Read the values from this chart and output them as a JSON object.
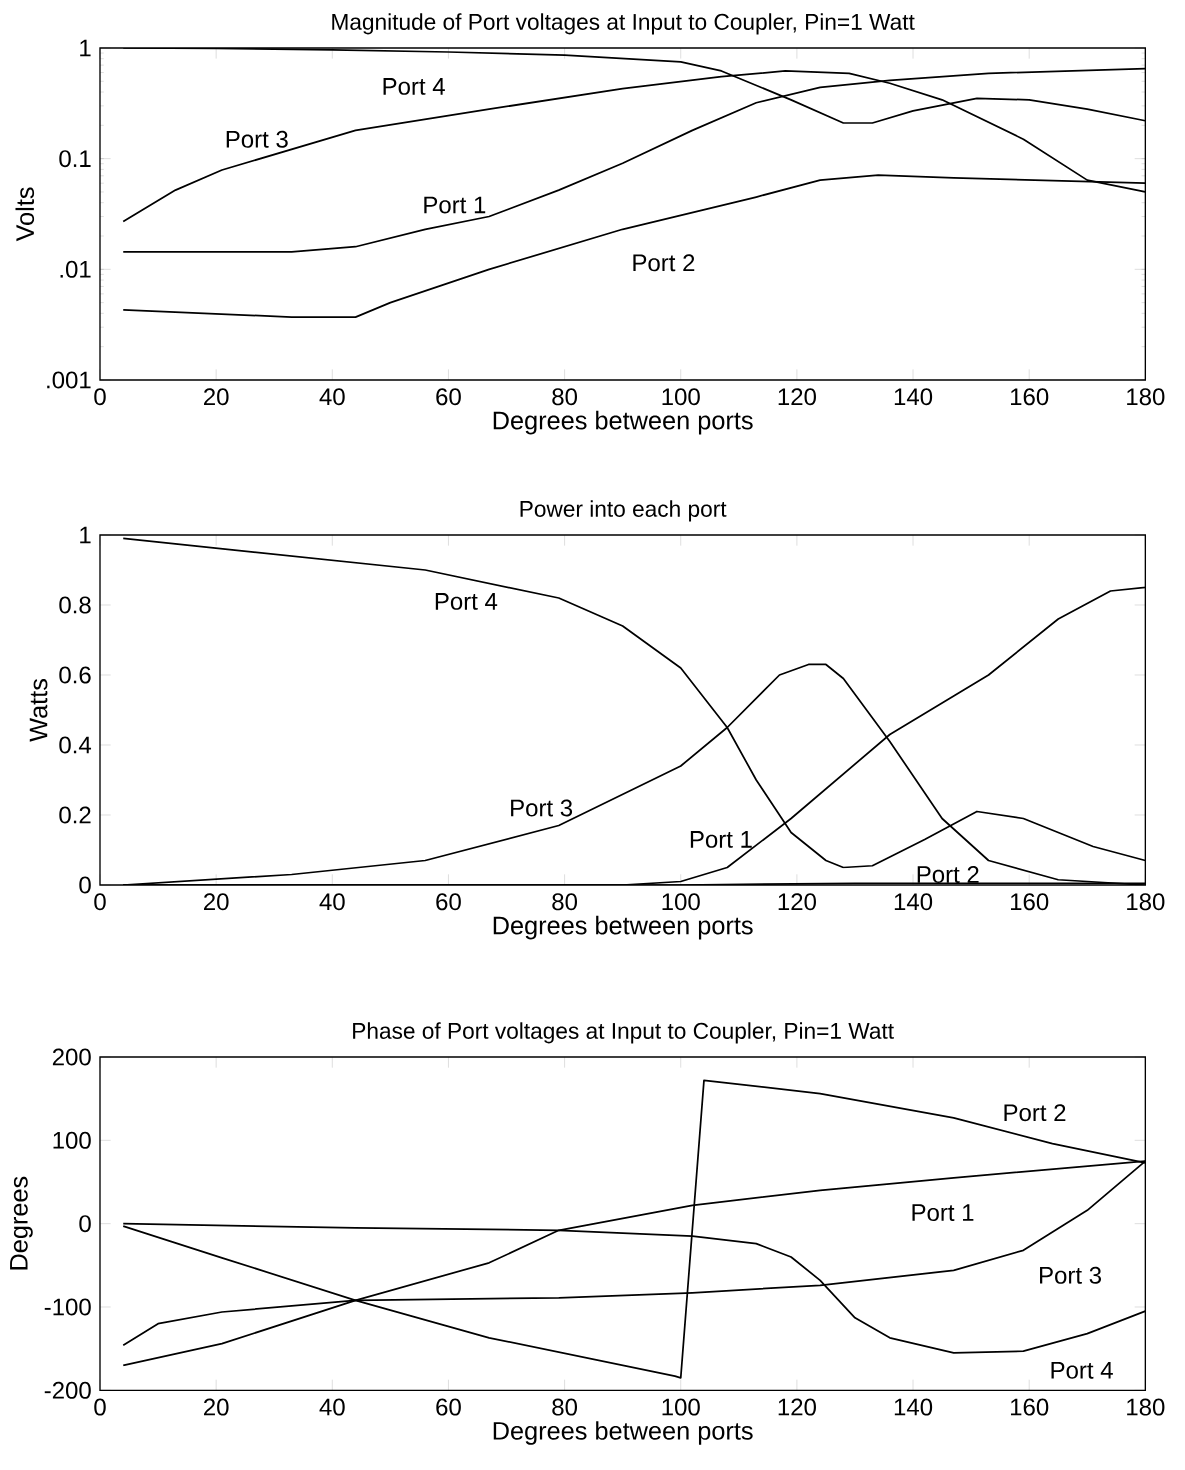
{
  "chart_data": [
    {
      "type": "line",
      "title": "Magnitude of Port voltages at Input to Coupler, Pin=1 Watt",
      "xlabel": "Degrees between ports",
      "ylabel": "Volts",
      "log": "y",
      "xlim": [
        0,
        180
      ],
      "xticks": [
        0,
        20,
        40,
        60,
        80,
        100,
        120,
        140,
        160,
        180
      ],
      "ylim": [
        0.001,
        1
      ],
      "yticks": [
        {
          "value": 0.001,
          "label": ".001"
        },
        {
          "value": 0.01,
          "label": ".01"
        },
        0.1,
        1
      ],
      "series": [
        {
          "name": "Port 4",
          "color": "#000000",
          "x": [
            4,
            20,
            40,
            60,
            80,
            100,
            107,
            119,
            128,
            133,
            140,
            151,
            160,
            170,
            180
          ],
          "values": [
            1.0,
            0.99,
            0.96,
            0.92,
            0.86,
            0.75,
            0.62,
            0.34,
            0.21,
            0.21,
            0.27,
            0.35,
            0.34,
            0.28,
            0.22
          ]
        },
        {
          "name": "Port 3",
          "color": "#000000",
          "x": [
            4,
            13,
            21,
            44,
            67,
            90,
            107,
            118,
            129,
            136,
            145,
            159,
            170,
            180
          ],
          "values": [
            0.027,
            0.052,
            0.079,
            0.18,
            0.28,
            0.43,
            0.55,
            0.62,
            0.59,
            0.48,
            0.34,
            0.15,
            0.064,
            0.05
          ]
        },
        {
          "name": "Port 1",
          "color": "#000000",
          "x": [
            4,
            33,
            44,
            56,
            67,
            79,
            90,
            102,
            113,
            124,
            136,
            153,
            180
          ],
          "values": [
            0.0144,
            0.0144,
            0.016,
            0.023,
            0.03,
            0.052,
            0.091,
            0.18,
            0.32,
            0.44,
            0.51,
            0.59,
            0.65
          ]
        },
        {
          "name": "Port 2",
          "color": "#000000",
          "x": [
            4,
            33,
            44,
            50,
            67,
            90,
            113,
            124,
            134,
            147,
            180
          ],
          "values": [
            0.0043,
            0.0037,
            0.0037,
            0.005,
            0.01,
            0.023,
            0.045,
            0.064,
            0.071,
            0.067,
            0.06
          ]
        }
      ]
    },
    {
      "type": "line",
      "title": "Power into each port",
      "xlabel": "Degrees between ports",
      "ylabel": "Watts",
      "xlim": [
        0,
        180
      ],
      "xticks": [
        0,
        20,
        40,
        60,
        80,
        100,
        120,
        140,
        160,
        180
      ],
      "ylim": [
        0,
        1
      ],
      "yticks": [
        0,
        0.2,
        0.4,
        0.6,
        0.8,
        1
      ],
      "series": [
        {
          "name": "Port 4",
          "color": "#000000",
          "x": [
            4,
            56,
            79,
            90,
            100,
            108,
            113,
            119,
            125,
            128,
            133,
            142,
            151,
            159,
            171,
            180
          ],
          "values": [
            0.99,
            0.9,
            0.82,
            0.74,
            0.62,
            0.45,
            0.3,
            0.15,
            0.07,
            0.05,
            0.055,
            0.13,
            0.21,
            0.19,
            0.11,
            0.07
          ]
        },
        {
          "name": "Port 3",
          "color": "#000000",
          "x": [
            4,
            33,
            56,
            79,
            100,
            108,
            117,
            122,
            125,
            128,
            136,
            145,
            153,
            165,
            180
          ],
          "values": [
            0,
            0.03,
            0.07,
            0.17,
            0.34,
            0.45,
            0.6,
            0.63,
            0.63,
            0.59,
            0.41,
            0.19,
            0.07,
            0.015,
            0
          ]
        },
        {
          "name": "Port 1",
          "color": "#000000",
          "x": [
            4,
            90,
            100,
            108,
            119,
            136,
            153,
            165,
            174,
            180
          ],
          "values": [
            0,
            0,
            0.01,
            0.05,
            0.19,
            0.43,
            0.6,
            0.76,
            0.84,
            0.85
          ]
        },
        {
          "name": "Port 2",
          "color": "#000000",
          "x": [
            4,
            100,
            130,
            180
          ],
          "values": [
            0,
            0,
            0.005,
            0.005
          ]
        }
      ]
    },
    {
      "type": "line",
      "title": "Phase of Port voltages at Input to Coupler, Pin=1 Watt",
      "xlabel": "Degrees between ports",
      "ylabel": "Degrees",
      "xlim": [
        0,
        180
      ],
      "xticks": [
        0,
        20,
        40,
        60,
        80,
        100,
        120,
        140,
        160,
        180
      ],
      "ylim": [
        -200,
        200
      ],
      "yticks": [
        -200,
        -100,
        0,
        100,
        200
      ],
      "series": [
        {
          "name": "Port 1",
          "color": "#000000",
          "x": [
            4,
            21,
            44,
            67,
            79,
            102,
            124,
            147,
            180
          ],
          "values": [
            -170,
            -144,
            -92,
            -47,
            -8,
            22,
            40,
            55,
            75
          ]
        },
        {
          "name": "Port 2",
          "color": "#000000",
          "x": [
            4,
            21,
            44,
            67,
            99,
            100,
            104,
            124,
            147,
            164,
            180
          ],
          "values": [
            -3,
            -41,
            -92,
            -137,
            -183,
            -185,
            172,
            156,
            127,
            96,
            73
          ]
        },
        {
          "name": "Port 3",
          "color": "#000000",
          "x": [
            4,
            10,
            21,
            44,
            79,
            102,
            124,
            147,
            159,
            170,
            180
          ],
          "values": [
            -146,
            -120,
            -106,
            -92,
            -89,
            -83,
            -74,
            -56,
            -32,
            16,
            75
          ]
        },
        {
          "name": "Port 4",
          "color": "#000000",
          "x": [
            4,
            44,
            79,
            102,
            113,
            119,
            124,
            130,
            136,
            147,
            159,
            170,
            180
          ],
          "values": [
            0,
            -5,
            -8,
            -15,
            -24,
            -40,
            -68,
            -113,
            -137,
            -155,
            -153,
            -132,
            -105
          ]
        }
      ]
    }
  ]
}
